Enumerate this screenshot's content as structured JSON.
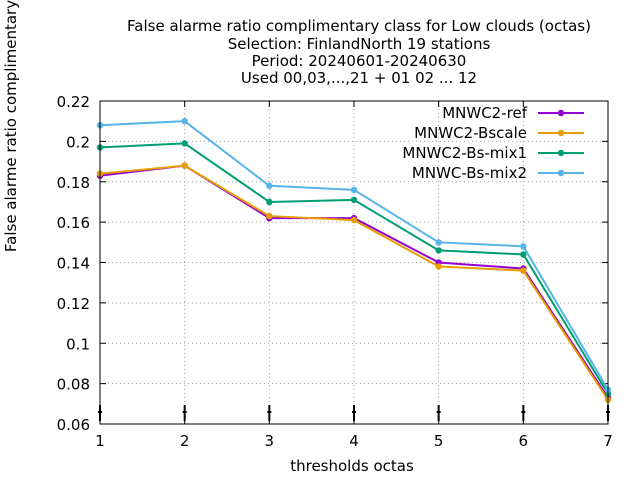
{
  "chart_data": {
    "type": "line",
    "title_lines": [
      "False alarme ratio complimentary class  for Low clouds (octas)",
      "Selection: FinlandNorth     19 stations",
      "Period: 20240601-20240630",
      "Used 00,03,...,21 + 01 02 ... 12"
    ],
    "xlabel": "thresholds octas",
    "ylabel": "False alarme ratio complimentary class",
    "x": [
      1,
      2,
      3,
      4,
      5,
      6,
      7
    ],
    "xlim": [
      1,
      7
    ],
    "ylim": [
      0.06,
      0.22
    ],
    "x_ticks": [
      "1",
      "2",
      "3",
      "4",
      "5",
      "6",
      "7"
    ],
    "y_ticks": [
      "0.06",
      "0.08",
      "0.1",
      "0.12",
      "0.14",
      "0.16",
      "0.18",
      "0.2",
      "0.22"
    ],
    "grid": true,
    "legend_position": "top-right",
    "series": [
      {
        "name": "MNWC2-ref",
        "color": "#9400d3",
        "values": [
          0.183,
          0.188,
          0.162,
          0.162,
          0.14,
          0.137,
          0.073
        ]
      },
      {
        "name": "MNWC2-Bscale",
        "color": "#e69f00",
        "values": [
          0.184,
          0.188,
          0.163,
          0.161,
          0.138,
          0.136,
          0.072
        ]
      },
      {
        "name": "MNWC2-Bs-mix1",
        "color": "#009e73",
        "values": [
          0.197,
          0.199,
          0.17,
          0.171,
          0.146,
          0.144,
          0.075
        ]
      },
      {
        "name": "MNWC-Bs-mix2",
        "color": "#56b4e9",
        "values": [
          0.208,
          0.21,
          0.178,
          0.176,
          0.15,
          0.148,
          0.077
        ]
      }
    ]
  }
}
